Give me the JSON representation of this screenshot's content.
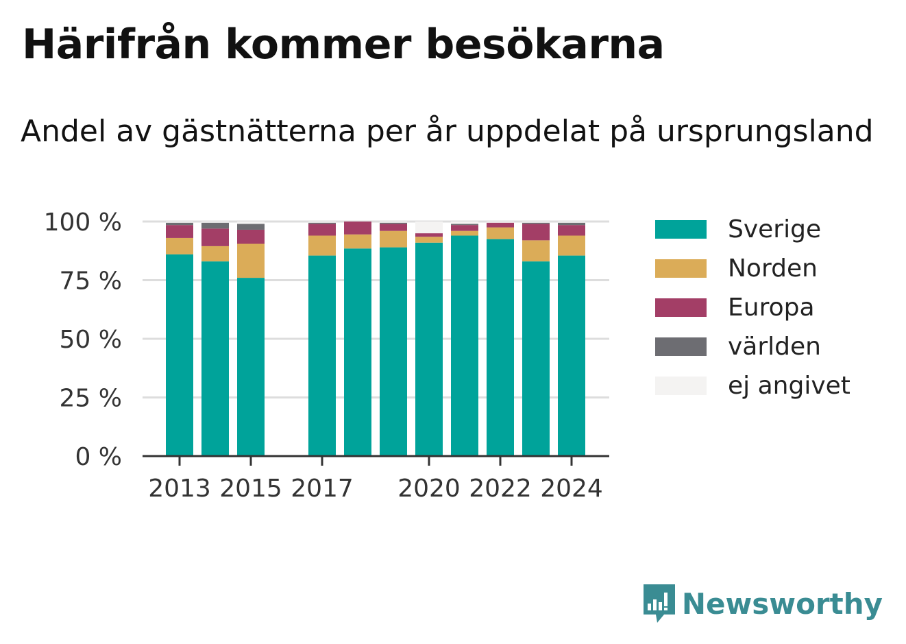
{
  "title": "Härifrån kommer besökarna",
  "subtitle": "Andel av gästnätterna per år uppdelat på ursprungsland",
  "brand": {
    "name": "Newsworthy",
    "color": "#3a8c93",
    "icon": "chat-bar-chart-icon"
  },
  "chart_data": {
    "type": "bar",
    "stacked": true,
    "title": "Härifrån kommer besökarna",
    "subtitle": "Andel av gästnätterna per år uppdelat på ursprungsland",
    "categories": [
      2013,
      2014,
      2015,
      2016,
      2017,
      2018,
      2019,
      2020,
      2021,
      2022,
      2023,
      2024
    ],
    "x_tick_labels": [
      "2013",
      "2015",
      "2017",
      "2020",
      "2022",
      "2024"
    ],
    "y_tick_labels": [
      "0 %",
      "25 %",
      "50 %",
      "75 %",
      "100 %"
    ],
    "ylim": [
      0,
      100
    ],
    "grid": true,
    "legend_position": "right",
    "series": [
      {
        "name": "Sverige",
        "color": "#00a39a",
        "values": [
          86,
          83,
          76,
          null,
          85.5,
          88.5,
          89,
          91,
          94,
          92.5,
          83,
          85.5
        ]
      },
      {
        "name": "Norden",
        "color": "#dbac58",
        "values": [
          7,
          6.5,
          14.5,
          null,
          8.5,
          6,
          7,
          2.5,
          2,
          5,
          9,
          8.5
        ]
      },
      {
        "name": "Europa",
        "color": "#a33e66",
        "values": [
          5.5,
          7.5,
          6,
          null,
          5,
          5.5,
          3,
          1.5,
          2.5,
          2,
          7,
          4.5
        ]
      },
      {
        "name": "världen",
        "color": "#6d6d72",
        "values": [
          1,
          2.5,
          2.5,
          null,
          0.5,
          0,
          0.5,
          0,
          0.5,
          0,
          0.5,
          1
        ]
      },
      {
        "name": "ej angivet",
        "color": "#f4f3f2",
        "values": [
          0.5,
          0.5,
          1,
          null,
          0.5,
          0,
          0.5,
          5,
          1,
          0.5,
          0.5,
          0.5
        ]
      }
    ]
  }
}
